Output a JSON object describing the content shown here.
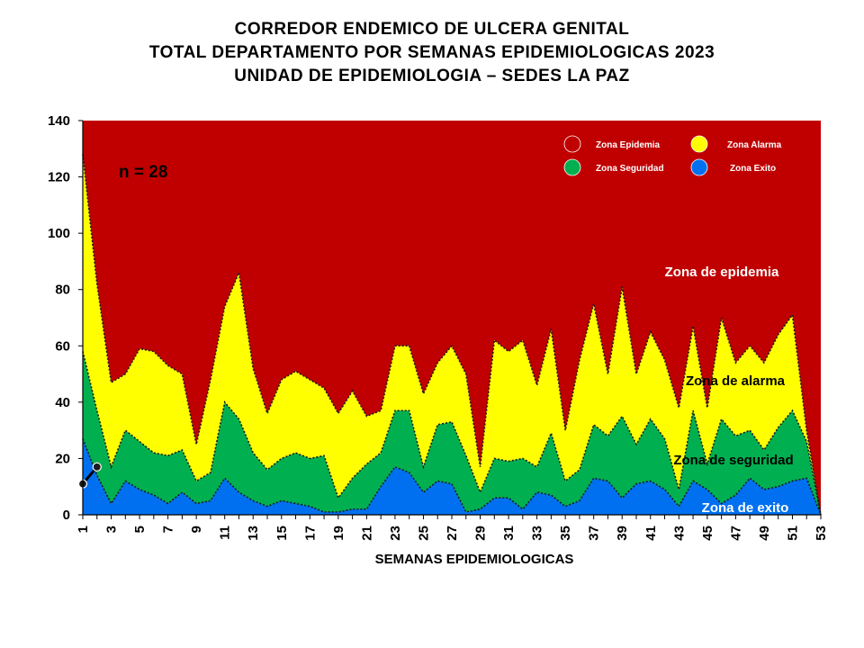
{
  "chart_data": {
    "type": "area",
    "title": [
      "CORREDOR ENDEMICO DE ULCERA GENITAL",
      "TOTAL DEPARTAMENTO POR SEMANAS EPIDEMIOLOGICAS 2023",
      "UNIDAD DE EPIDEMIOLOGIA – SEDES LA PAZ"
    ],
    "xlabel": "SEMANAS EPIDEMIOLOGICAS",
    "ylabel": "",
    "ylim": [
      0,
      140
    ],
    "yticks": [
      0,
      20,
      40,
      60,
      80,
      100,
      120,
      140
    ],
    "xlim": [
      1,
      53
    ],
    "xticks": [
      1,
      3,
      5,
      7,
      9,
      11,
      13,
      15,
      17,
      19,
      21,
      23,
      25,
      27,
      29,
      31,
      33,
      35,
      37,
      39,
      41,
      43,
      45,
      47,
      49,
      51,
      53
    ],
    "annotation": "n = 28",
    "legend_position": "top-right",
    "series": [
      {
        "name": "Zona Epidemia",
        "color": "#c00000",
        "fill": "background"
      },
      {
        "name": "Zona Alarma",
        "color": "#ffff00",
        "values": [
          128,
          82,
          47,
          50,
          59,
          58,
          53,
          50,
          25,
          48,
          74,
          86,
          52,
          36,
          48,
          51,
          48,
          45,
          36,
          44,
          35,
          37,
          60,
          60,
          43,
          54,
          60,
          50,
          17,
          62,
          58,
          62,
          46,
          66,
          30,
          55,
          75,
          50,
          81,
          50,
          65,
          55,
          38,
          67,
          38,
          70,
          54,
          60,
          54,
          64,
          71,
          30,
          0
        ]
      },
      {
        "name": "Zona Seguridad",
        "color": "#00b050",
        "values": [
          58,
          37,
          17,
          30,
          26,
          22,
          21,
          23,
          12,
          15,
          40,
          34,
          22,
          16,
          20,
          22,
          20,
          21,
          6,
          13,
          18,
          22,
          37,
          37,
          17,
          32,
          33,
          21,
          8,
          20,
          19,
          20,
          17,
          29,
          12,
          16,
          32,
          28,
          35,
          25,
          34,
          27,
          9,
          37,
          18,
          34,
          28,
          30,
          23,
          31,
          37,
          26,
          0
        ]
      },
      {
        "name": "Zona Exito",
        "color": "#0070f0",
        "values": [
          27,
          14,
          4,
          12,
          9,
          7,
          4,
          8,
          4,
          5,
          13,
          8,
          5,
          3,
          5,
          4,
          3,
          1,
          1,
          2,
          2,
          10,
          17,
          15,
          8,
          12,
          11,
          1,
          2,
          6,
          6,
          2,
          8,
          7,
          3,
          5,
          13,
          12,
          6,
          11,
          12,
          9,
          3,
          12,
          9,
          4,
          7,
          13,
          9,
          10,
          12,
          13,
          0
        ]
      }
    ],
    "current_cases": {
      "x": [
        1,
        2
      ],
      "values": [
        11,
        17
      ],
      "color": "#000000"
    },
    "zone_labels": [
      {
        "text": "Zona de epidemia",
        "color": "#ffffff"
      },
      {
        "text": "Zona de alarma",
        "color": "#000000"
      },
      {
        "text": "Zona de  seguridad",
        "color": "#000000"
      },
      {
        "text": "Zona de exito",
        "color": "#ffffff"
      }
    ],
    "grid": false
  }
}
